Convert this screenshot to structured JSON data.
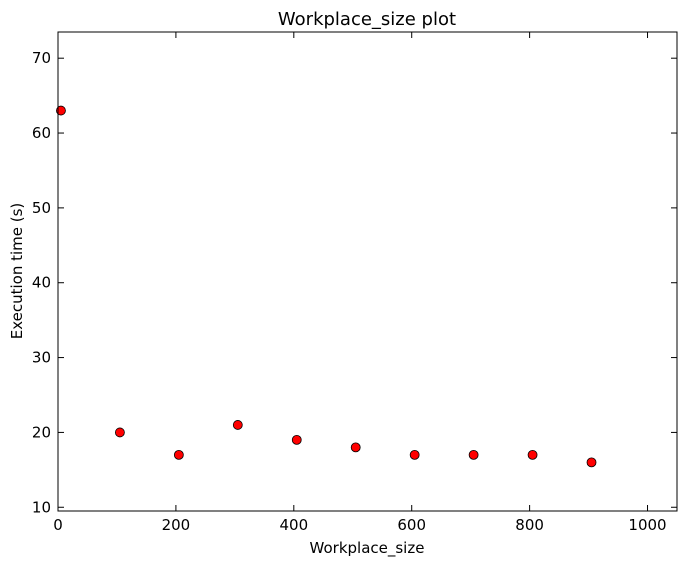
{
  "chart_data": {
    "type": "scatter",
    "title": "Workplace_size plot",
    "xlabel": "Workplace_size",
    "ylabel": "Execution time (s)",
    "xlim": [
      0,
      1050
    ],
    "ylim": [
      9.5,
      73.5
    ],
    "xticks": [
      0,
      200,
      400,
      600,
      800,
      1000
    ],
    "yticks": [
      10,
      20,
      30,
      40,
      50,
      60,
      70
    ],
    "x": [
      5,
      105,
      205,
      305,
      405,
      505,
      605,
      705,
      805,
      905
    ],
    "y": [
      63,
      20,
      17,
      21,
      19,
      18,
      17,
      17,
      17,
      16
    ],
    "marker_color": "#ff0000",
    "marker_edge_color": "#000000",
    "grid": false
  }
}
